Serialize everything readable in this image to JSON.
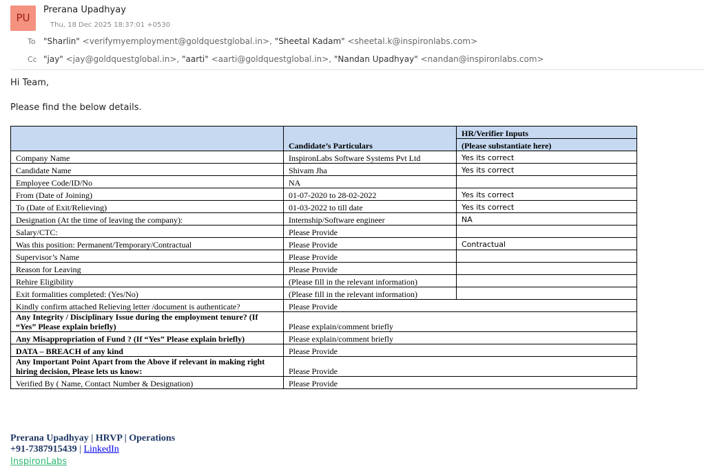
{
  "header": {
    "avatar": "PU",
    "sender": "Prerana Upadhyay",
    "date": "Thu, 18 Dec 2025 18:37:01 +0530",
    "to_label": "To",
    "to": [
      {
        "name": "\"Sharlin\"",
        "email": "<verifymyemployment@goldquestglobal.in>,"
      },
      {
        "name": "\"Sheetal Kadam\"",
        "email": "<sheetal.k@inspironlabs.com>"
      }
    ],
    "cc_label": "Cc",
    "cc": [
      {
        "name": "\"jay\"",
        "email": "<jay@goldquestglobal.in>,"
      },
      {
        "name": "\"aarti\"",
        "email": "<aarti@goldquestglobal.in>,"
      },
      {
        "name": "\"Nandan Upadhyay\"",
        "email": "<nandan@inspironlabs.com>"
      }
    ]
  },
  "body": {
    "greeting": "Hi Team,",
    "intro": "Please find the below details."
  },
  "table": {
    "head": {
      "particulars": "Candidate’s Particulars",
      "hr_title": "HR/Verifier Inputs",
      "hr_subtitle": "(Please substantiate here)"
    },
    "rows": [
      [
        "Company Name",
        "InspironLabs Software Systems Pvt Ltd",
        "Yes its correct"
      ],
      [
        "Candidate Name",
        "Shivam Jha",
        "Yes its correct"
      ],
      [
        "Employee Code/ID/No",
        "NA"
      ],
      [
        "From (Date of Joining)",
        "01-07-2020 to 28-02-2022",
        "Yes its correct"
      ],
      [
        "To (Date of Exit/Relieving)",
        "01-03-2022 to till date",
        "Yes its correct"
      ],
      [
        "Designation (At the time of leaving the company):",
        "Internship/Software engineer",
        "NA"
      ],
      [
        "Salary/CTC:",
        "Please Provide"
      ],
      [
        "Was this position: Permanent/Temporary/Contractual",
        "Please Provide",
        "Contractual"
      ],
      [
        "Supervisor’s Name",
        "Please Provide"
      ],
      [
        "Reason for Leaving",
        "Please Provide"
      ],
      [
        "Rehire Eligibility",
        "(Please fill in the relevant information)"
      ],
      [
        "Exit formalities completed: (Yes/No)",
        "(Please fill in the relevant information)"
      ],
      [
        "Kindly confirm attached Relieving letter /document is authenticate?",
        "Please Provide"
      ],
      [
        "Any Integrity / Disciplinary Issue during the employment tenure? (If “Yes” Please explain briefly)",
        "Please explain/comment briefly"
      ],
      [
        "Any Misappropriation of Fund ? (If “Yes” Please explain briefly)",
        "Please explain/comment briefly"
      ],
      [
        "DATA – BREACH of any kind",
        "Please Provide"
      ],
      [
        "Any Important Point Apart from the Above if relevant in making right hiring decision, Please lets us know:",
        "Please Provide"
      ],
      [
        "Verified By ( Name, Contact Number & Designation)",
        "Please Provide"
      ]
    ]
  },
  "signature": {
    "line1": "Prerana Upadhyay | HRVP | Operations",
    "phone": "+91-7387915439",
    "separator": "|",
    "link": "LinkedIn",
    "company": "InspironLabs"
  }
}
